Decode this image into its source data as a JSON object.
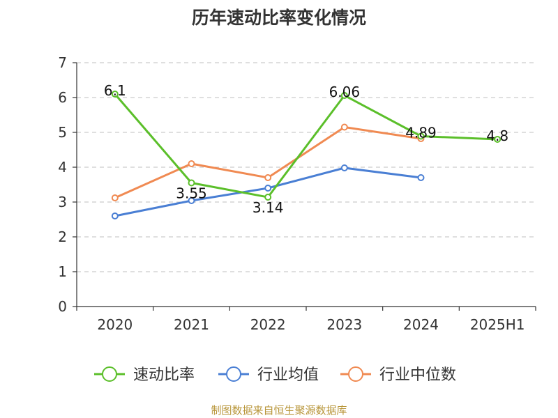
{
  "title": "历年速动比率变化情况",
  "source": "制图数据来自恒生聚源数据库",
  "chart_data": {
    "type": "line",
    "title": "历年速动比率变化情况",
    "categories": [
      "2020",
      "2021",
      "2022",
      "2023",
      "2024",
      "2025H1"
    ],
    "ylim": [
      0,
      7
    ],
    "yticks": [
      0,
      1,
      2,
      3,
      4,
      5,
      6,
      7
    ],
    "grid": true,
    "legend_position": "bottom",
    "series": [
      {
        "name": "速动比率",
        "color": "#5bbf2a",
        "values": [
          6.1,
          3.55,
          3.14,
          6.06,
          4.89,
          4.8
        ],
        "labels": [
          "6.1",
          "3.55",
          "3.14",
          "6.06",
          "4.89",
          "4.8"
        ]
      },
      {
        "name": "行业均值",
        "color": "#4a7fd4",
        "values": [
          2.6,
          3.04,
          3.4,
          3.98,
          3.7,
          null
        ]
      },
      {
        "name": "行业中位数",
        "color": "#f08a52",
        "values": [
          3.12,
          4.1,
          3.7,
          5.15,
          4.82,
          null
        ]
      }
    ]
  }
}
